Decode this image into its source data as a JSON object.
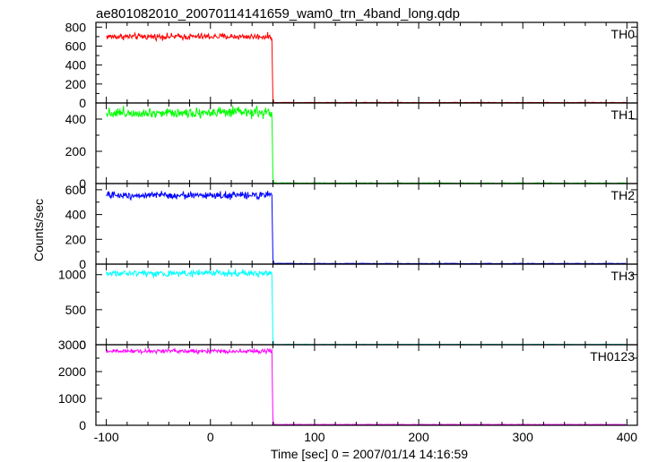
{
  "title": "ae801082010_20070114141659_wam0_trn_4band_long.qdp",
  "x_axis_label": "Time [sec] 0 = 2007/01/14 14:16:59",
  "y_axis_label": "Counts/sec",
  "chart_data": {
    "type": "line",
    "title": "ae801082010_20070114141659_wam0_trn_4band_long.qdp",
    "xlabel": "Time [sec] 0 = 2007/01/14 14:16:59",
    "ylabel": "Counts/sec",
    "xlim": [
      -110,
      410
    ],
    "x_ticks": [
      -100,
      0,
      100,
      200,
      300,
      400
    ],
    "panels": [
      {
        "name": "TH0",
        "color": "#ff0000",
        "ylim": [
          0,
          850
        ],
        "y_ticks": [
          0,
          200,
          400,
          600,
          800
        ],
        "level_before": 700,
        "noise": 25,
        "transition_start": 59,
        "transition_peak": 340,
        "level_after": 5,
        "x_start": -100,
        "x_end": 400
      },
      {
        "name": "TH1",
        "color": "#00ff00",
        "ylim": [
          0,
          500
        ],
        "y_ticks": [
          0,
          200,
          400
        ],
        "level_before": 440,
        "noise": 25,
        "transition_start": 59,
        "transition_peak": 240,
        "level_after": 3,
        "x_start": -100,
        "x_end": 400
      },
      {
        "name": "TH2",
        "color": "#0000ff",
        "ylim": [
          0,
          650
        ],
        "y_ticks": [
          0,
          200,
          400,
          600
        ],
        "level_before": 555,
        "noise": 22,
        "transition_start": 59,
        "transition_peak": 290,
        "level_after": 5,
        "x_start": -100,
        "x_end": 400
      },
      {
        "name": "TH3",
        "color": "#00ffff",
        "ylim": [
          0,
          1150
        ],
        "y_ticks": [
          0,
          500,
          1000
        ],
        "level_before": 1020,
        "noise": 35,
        "transition_start": 59,
        "transition_peak": 520,
        "level_after": 5,
        "x_start": -100,
        "x_end": 400
      },
      {
        "name": "TH0123",
        "color": "#ff00ff",
        "ylim": [
          0,
          3000
        ],
        "y_ticks": [
          0,
          1000,
          2000,
          3000
        ],
        "level_before": 2760,
        "noise": 60,
        "transition_start": 59,
        "transition_peak": 1400,
        "level_after": 30,
        "x_start": -100,
        "x_end": 400
      }
    ]
  }
}
